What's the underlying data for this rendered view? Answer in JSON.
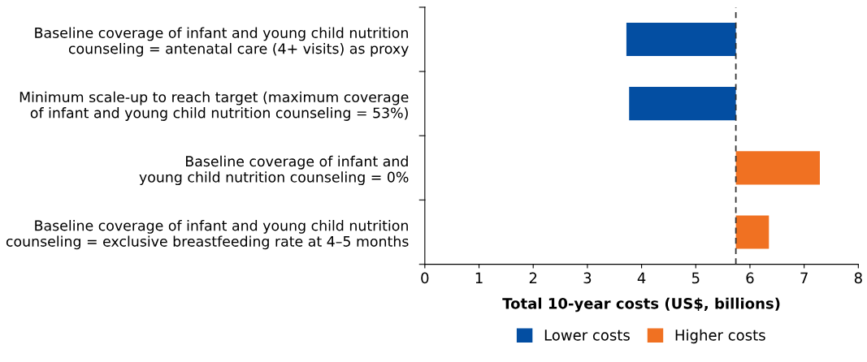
{
  "chart_data": {
    "type": "bar",
    "orientation": "horizontal",
    "xlabel": "Total 10-year costs (US$, billions)",
    "categories": [
      "Baseline coverage of infant and young child nutrition\ncounseling = antenatal care (4+ visits) as proxy",
      "Minimum scale-up to reach target (maximum coverage\nof infant and young child nutrition counseling = 53%)",
      "Baseline coverage of infant and\nyoung child nutrition counseling = 0%",
      "Baseline coverage of infant and young child nutrition\ncounseling = exclusive breastfeeding rate at 4–5 months"
    ],
    "series": [
      {
        "name": "Lower costs",
        "color": "#034ea2",
        "base": [
          3.72,
          3.77,
          null,
          null
        ],
        "values": [
          2.02,
          1.97,
          null,
          null
        ]
      },
      {
        "name": "Higher costs",
        "color": "#f07122",
        "base": [
          null,
          null,
          5.74,
          5.74
        ],
        "values": [
          null,
          null,
          1.55,
          0.61
        ]
      }
    ],
    "xlim": [
      0,
      8
    ],
    "xticks": [
      0,
      1,
      2,
      3,
      4,
      5,
      6,
      7,
      8
    ],
    "ref_lines": [
      {
        "axis": "x",
        "value": 5.74,
        "line_style": "dashed",
        "color": "#333333"
      }
    ],
    "grid": false,
    "legend": "bottom"
  }
}
